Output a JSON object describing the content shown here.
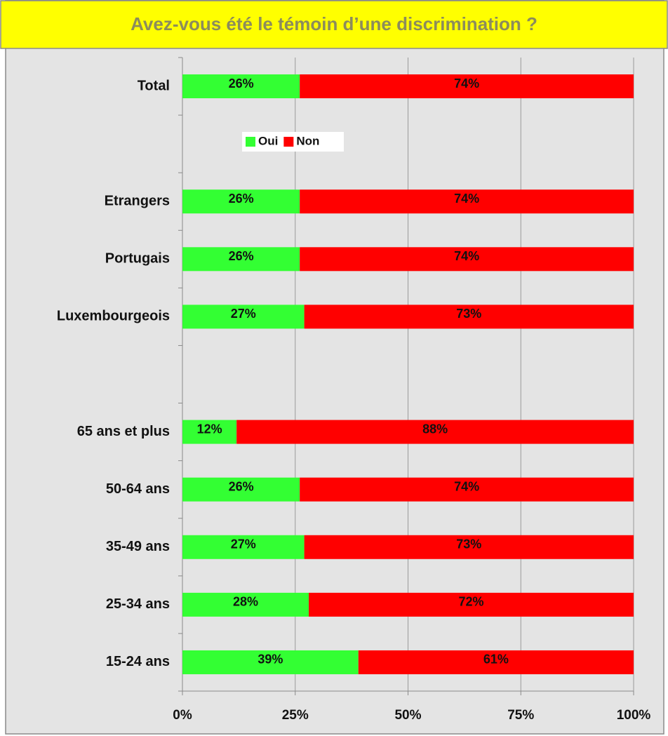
{
  "chart_data": {
    "type": "bar",
    "orientation": "horizontal",
    "stacked": true,
    "title": "Avez-vous été le témoin d’une discrimination ?",
    "categories": [
      "Total",
      null,
      "Etrangers",
      "Portugais",
      "Luxembourgeois",
      null,
      "65 ans et plus",
      "50-64 ans",
      "35-49 ans",
      "25-34 ans",
      "15-24 ans"
    ],
    "series": [
      {
        "name": "Oui",
        "color": "#33ff33",
        "values": [
          26,
          null,
          26,
          26,
          27,
          null,
          12,
          26,
          27,
          28,
          39
        ],
        "value_labels": [
          "26%",
          null,
          "26%",
          "26%",
          "27%",
          null,
          "12%",
          "26%",
          "27%",
          "28%",
          "39%"
        ]
      },
      {
        "name": "Non",
        "color": "#ff0000",
        "values": [
          74,
          null,
          74,
          74,
          73,
          null,
          88,
          74,
          73,
          72,
          61
        ],
        "value_labels": [
          "74%",
          null,
          "74%",
          "74%",
          "73%",
          null,
          "88%",
          "74%",
          "73%",
          "72%",
          "61%"
        ]
      }
    ],
    "xlim": [
      0,
      100
    ],
    "xticks": [
      {
        "value": 0,
        "label": "0%"
      },
      {
        "value": 25,
        "label": "25%"
      },
      {
        "value": 50,
        "label": "50%"
      },
      {
        "value": 75,
        "label": "75%"
      },
      {
        "value": 100,
        "label": "100%"
      }
    ],
    "grid": true,
    "legend": "upper left"
  }
}
